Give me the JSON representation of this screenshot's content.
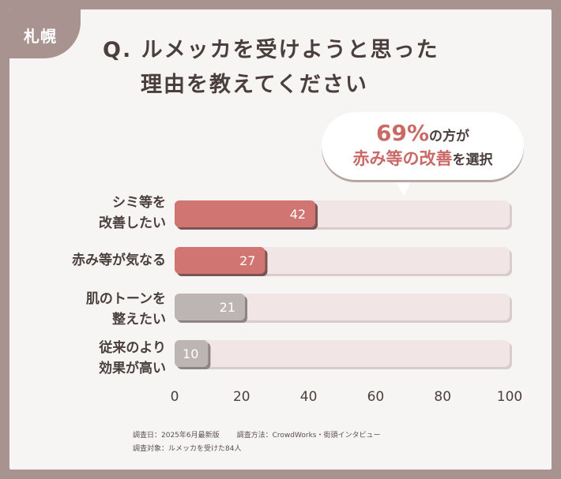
{
  "badge": "札幌",
  "title_line1": "Q. ルメッカを受けようと思った",
  "title_line2": "理由を教えてください",
  "callout": {
    "percent": "69%",
    "line1_rest": "の方が",
    "highlight": "赤み等の改善",
    "line2_rest": "を選択"
  },
  "chart_data": {
    "type": "bar",
    "orientation": "horizontal",
    "categories": [
      "シミ等を\n改善したい",
      "赤み等が気なる",
      "肌のトーンを\n整えたい",
      "従来のより\n効果が高い"
    ],
    "values": [
      42,
      27,
      21,
      10
    ],
    "xlim": [
      0,
      100
    ],
    "xticks": [
      0,
      20,
      40,
      60,
      80,
      100
    ],
    "colors": {
      "highlight": "#d07572",
      "muted": "#bdb5b3",
      "track": "#f1e6e5",
      "highlight_shadow": "#7a5553",
      "muted_shadow": "#8d8583",
      "track_shadow": "#d6cdcc"
    },
    "highlight_count": 2
  },
  "footer": {
    "survey_date": "調査日：2025年6月最新版",
    "survey_method": "調査方法：CrowdWorks・街頭インタビュー",
    "survey_target": "調査対象：ルメッカを受けた84人"
  }
}
